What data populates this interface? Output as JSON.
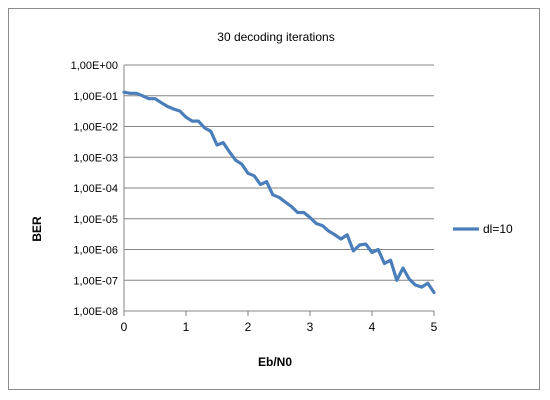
{
  "chart_data": {
    "type": "line",
    "title": "30 decoding iterations",
    "xlabel": "Eb/N0",
    "ylabel": "BER",
    "xlim": [
      0,
      5
    ],
    "ylim": [
      1e-08,
      1
    ],
    "yscale": "log",
    "grid": "horizontal",
    "legend_position": "right",
    "x_ticks": [
      "0",
      "1",
      "2",
      "3",
      "4",
      "5"
    ],
    "y_ticks": [
      "1,00E+00",
      "1,00E-01",
      "1,00E-02",
      "1,00E-03",
      "1,00E-04",
      "1,00E-05",
      "1,00E-06",
      "1,00E-07",
      "1,00E-08"
    ],
    "series": [
      {
        "name": "dl=10",
        "color": "#4a7ebb",
        "x": [
          0,
          0.1,
          0.2,
          0.3,
          0.4,
          0.5,
          0.6,
          0.7,
          0.8,
          0.9,
          1.0,
          1.1,
          1.2,
          1.3,
          1.4,
          1.5,
          1.6,
          1.7,
          1.8,
          1.9,
          2.0,
          2.1,
          2.2,
          2.3,
          2.4,
          2.5,
          2.6,
          2.7,
          2.8,
          2.9,
          3.0,
          3.1,
          3.2,
          3.3,
          3.4,
          3.5,
          3.6,
          3.7,
          3.8,
          3.9,
          4.0,
          4.1,
          4.2,
          4.3,
          4.4,
          4.5,
          4.6,
          4.7,
          4.8,
          4.9,
          5.0
        ],
        "y": [
          0.13,
          0.12,
          0.12,
          0.1,
          0.08,
          0.08,
          0.06,
          0.045,
          0.037,
          0.032,
          0.02,
          0.015,
          0.015,
          0.009,
          0.007,
          0.0025,
          0.003,
          0.0015,
          0.0008,
          0.0006,
          0.0003,
          0.00025,
          0.00013,
          0.00016,
          6e-05,
          5e-05,
          3.5e-05,
          2.5e-05,
          1.6e-05,
          1.6e-05,
          1.1e-05,
          7e-06,
          6e-06,
          4e-06,
          3e-06,
          2.2e-06,
          3e-06,
          9e-07,
          1.4e-06,
          1.5e-06,
          8e-07,
          1e-06,
          3.5e-07,
          4.5e-07,
          1e-07,
          2.5e-07,
          1.1e-07,
          7e-08,
          6e-08,
          8e-08,
          4e-08
        ]
      }
    ]
  }
}
